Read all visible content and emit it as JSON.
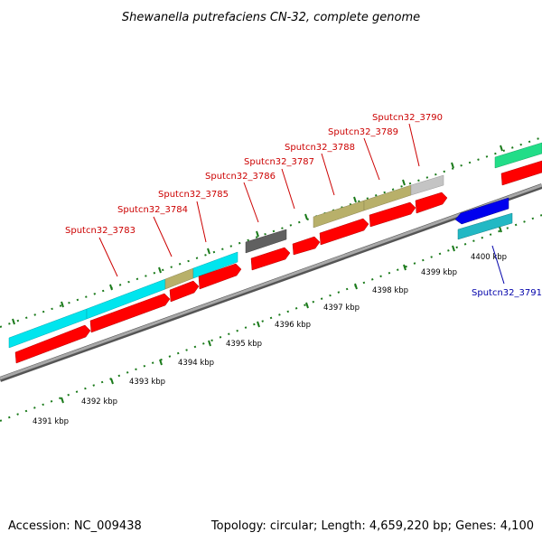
{
  "title": "Shewanella putrefaciens CN-32, complete genome",
  "accession": "Accession: NC_009438",
  "summary": "Topology: circular; Length: 4,659,220 bp; Genes: 4,100",
  "colors": {
    "backbone": "#808080",
    "tick": "#1a7a1a",
    "forward_label": "#cc0000",
    "reverse_label": "#0000aa",
    "cds": "#ff0000",
    "cyan": "#00e5ee",
    "khaki": "#b8b06a",
    "dark_gray": "#606060",
    "light_gray": "#c4c4c4",
    "green": "#22dd88",
    "blue": "#0000ee",
    "teal": "#22b8c4"
  },
  "kbp_labels": [
    "4391 kbp",
    "4392 kbp",
    "4393 kbp",
    "4394 kbp",
    "4395 kbp",
    "4396 kbp",
    "4397 kbp",
    "4398 kbp",
    "4399 kbp",
    "4400 kbp"
  ],
  "gene_labels": [
    {
      "id": "Sputcn32_3783",
      "strand": "forward"
    },
    {
      "id": "Sputcn32_3784",
      "strand": "forward"
    },
    {
      "id": "Sputcn32_3785",
      "strand": "forward"
    },
    {
      "id": "Sputcn32_3786",
      "strand": "forward"
    },
    {
      "id": "Sputcn32_3787",
      "strand": "forward"
    },
    {
      "id": "Sputcn32_3788",
      "strand": "forward"
    },
    {
      "id": "Sputcn32_3789",
      "strand": "forward"
    },
    {
      "id": "Sputcn32_3790",
      "strand": "forward"
    },
    {
      "id": "Sputcn32_3791",
      "strand": "reverse"
    }
  ]
}
